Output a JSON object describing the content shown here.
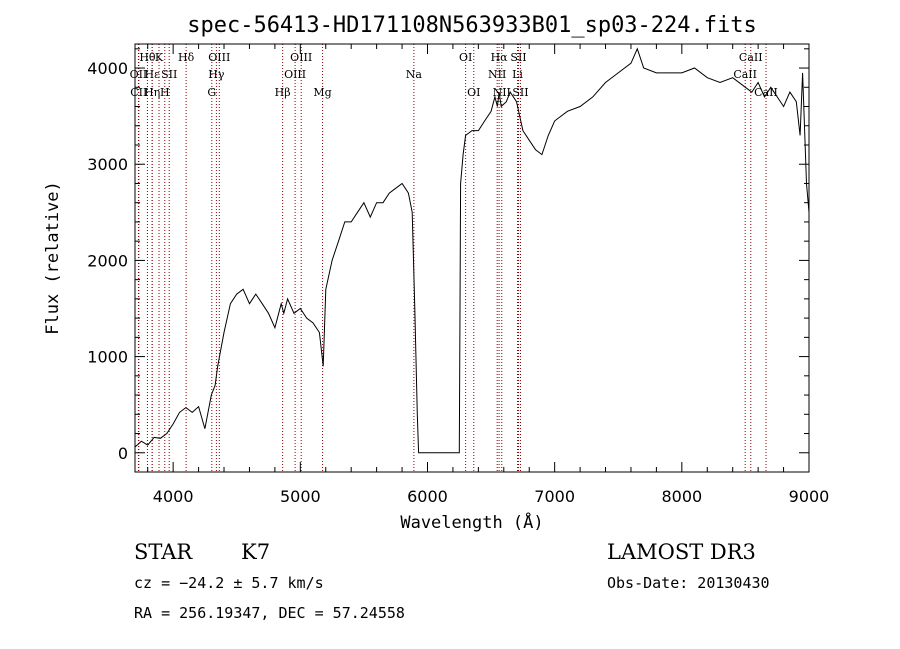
{
  "chart_data": {
    "type": "line",
    "title": "spec-56413-HD171108N563933B01_sp03-224.fits",
    "xlabel": "Wavelength (Å)",
    "ylabel": "Flux (relative)",
    "xlim": [
      3700,
      9000
    ],
    "ylim": [
      -200,
      4250
    ],
    "xticks": [
      4000,
      5000,
      6000,
      7000,
      8000,
      9000
    ],
    "yticks": [
      0,
      1000,
      2000,
      3000,
      4000
    ],
    "grid": false,
    "series": [
      {
        "name": "flux",
        "x": [
          3700,
          3750,
          3800,
          3850,
          3900,
          3950,
          4000,
          4050,
          4100,
          4150,
          4200,
          4250,
          4300,
          4330,
          4350,
          4400,
          4450,
          4500,
          4550,
          4600,
          4650,
          4700,
          4750,
          4800,
          4850,
          4870,
          4900,
          4950,
          5000,
          5050,
          5100,
          5150,
          5180,
          5200,
          5250,
          5300,
          5350,
          5400,
          5450,
          5500,
          5550,
          5600,
          5650,
          5700,
          5750,
          5800,
          5850,
          5880,
          5900,
          5920,
          5930,
          6250,
          6260,
          6280,
          6300,
          6350,
          6400,
          6450,
          6500,
          6530,
          6550,
          6563,
          6580,
          6620,
          6650,
          6700,
          6750,
          6800,
          6850,
          6900,
          6950,
          7000,
          7100,
          7200,
          7300,
          7400,
          7500,
          7600,
          7650,
          7700,
          7800,
          7900,
          8000,
          8100,
          8200,
          8300,
          8400,
          8500,
          8550,
          8600,
          8650,
          8700,
          8750,
          8800,
          8850,
          8900,
          8930,
          8950,
          8980,
          9000
        ],
        "values": [
          60,
          120,
          80,
          160,
          150,
          200,
          300,
          420,
          470,
          420,
          480,
          250,
          600,
          700,
          900,
          1250,
          1550,
          1650,
          1700,
          1550,
          1650,
          1550,
          1450,
          1300,
          1550,
          1450,
          1600,
          1450,
          1500,
          1400,
          1350,
          1250,
          900,
          1700,
          2000,
          2200,
          2400,
          2400,
          2500,
          2600,
          2450,
          2600,
          2600,
          2700,
          2750,
          2800,
          2700,
          2500,
          1500,
          400,
          0,
          0,
          2800,
          3100,
          3300,
          3350,
          3350,
          3450,
          3550,
          3700,
          3600,
          3750,
          3600,
          3650,
          3750,
          3650,
          3350,
          3250,
          3150,
          3100,
          3300,
          3450,
          3550,
          3600,
          3700,
          3850,
          3950,
          4050,
          4200,
          4000,
          3950,
          3950,
          3950,
          4000,
          3900,
          3850,
          3900,
          3800,
          3750,
          3850,
          3700,
          3800,
          3700,
          3600,
          3750,
          3650,
          3300,
          3950,
          2800,
          2500
        ]
      }
    ],
    "line_markers": [
      {
        "label": "Hθ",
        "x": 3798,
        "row": 1
      },
      {
        "label": "OII",
        "x": 3727,
        "row": 2
      },
      {
        "label": "CII",
        "x": 3730,
        "row": 3
      },
      {
        "label": "Hε",
        "x": 3835,
        "row": 2
      },
      {
        "label": "Hη",
        "x": 3835,
        "row": 3
      },
      {
        "label": "K",
        "x": 3889,
        "row": 1
      },
      {
        "label": "H",
        "x": 3934,
        "row": 3
      },
      {
        "label": "SII",
        "x": 3969,
        "row": 2
      },
      {
        "label": "Hδ",
        "x": 4102,
        "row": 1
      },
      {
        "label": "OIII",
        "x": 4363,
        "row": 1
      },
      {
        "label": "Hγ",
        "x": 4340,
        "row": 2
      },
      {
        "label": "G",
        "x": 4304,
        "row": 3
      },
      {
        "label": "Hβ",
        "x": 4861,
        "row": 3
      },
      {
        "label": "OIII",
        "x": 5007,
        "row": 1
      },
      {
        "label": "OIII",
        "x": 4959,
        "row": 2
      },
      {
        "label": "Mg",
        "x": 5175,
        "row": 3
      },
      {
        "label": "Na",
        "x": 5893,
        "row": 2
      },
      {
        "label": "OI",
        "x": 6300,
        "row": 1
      },
      {
        "label": "OI",
        "x": 6364,
        "row": 3
      },
      {
        "label": "Hα",
        "x": 6563,
        "row": 1
      },
      {
        "label": "SII",
        "x": 6716,
        "row": 1
      },
      {
        "label": "NII",
        "x": 6548,
        "row": 2
      },
      {
        "label": "Li",
        "x": 6708,
        "row": 2
      },
      {
        "label": "NII",
        "x": 6584,
        "row": 3
      },
      {
        "label": "SII",
        "x": 6731,
        "row": 3
      },
      {
        "label": "CaII",
        "x": 8542,
        "row": 1
      },
      {
        "label": "CaII",
        "x": 8498,
        "row": 2
      },
      {
        "label": "CaII",
        "x": 8662,
        "row": 3
      }
    ]
  },
  "info": {
    "object_type": "STAR",
    "spectral_class": "K7",
    "survey": "LAMOST DR3",
    "cz": "cz = −24.2 ± 5.7 km/s",
    "obs_date": "Obs-Date: 20130430",
    "coords": "RA = 256.19347, DEC =  57.24558"
  },
  "colors": {
    "line": "#000000",
    "marker": "#8b0000"
  }
}
